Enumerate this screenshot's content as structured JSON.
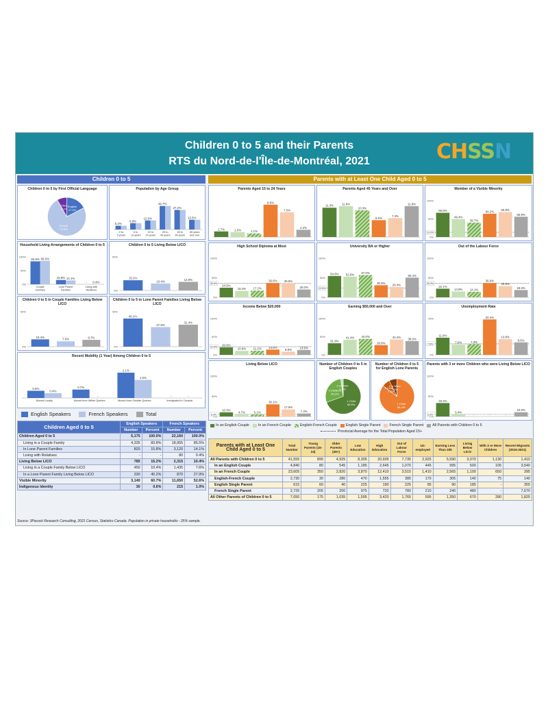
{
  "header": {
    "title_line1": "Children 0 to 5 and their Parents",
    "title_line2": "RTS du Nord-de-l'Île-de-Montréal, 2021",
    "logo": [
      "CH",
      "SS",
      "N"
    ]
  },
  "colors": {
    "header": "#1a8a9c",
    "left_band": "#4c72c3",
    "right_band": "#c99c13",
    "english": "#4472c4",
    "french": "#b4c6e7",
    "total": "#a5a5a5",
    "en_couple": "#548235",
    "fr_couple": "#c5e0b4",
    "ef_couple": "#70ad47",
    "en_single": "#ed7d31",
    "fr_single": "#f8cbad",
    "all": "#a5a5a5"
  },
  "bands": {
    "left": "Children 0 to 5",
    "right": "Parents with at Least One Child Aged 0 to 5"
  },
  "left_legend": [
    "English Speakers",
    "French Speakers",
    "Total"
  ],
  "right_legend": {
    "items": [
      "In an English Couple",
      "In an French Couple",
      "English-French Couple",
      "English Single Parent",
      "French Single Parent",
      "All Parents with Children 0 to 5"
    ],
    "provincial": "Provincial Average for the Total Population Aged 15+"
  },
  "chart_data": [
    {
      "id": "c1",
      "type": "pie",
      "title": "Children 0 to 5 by First Official Language",
      "labels": [
        "English",
        "French",
        "Other"
      ],
      "values": [
        17.4,
        74.5,
        8.1
      ],
      "value_labels": [
        "17.4%",
        "74.5%",
        "8.1%"
      ],
      "colors": [
        "#4472c4",
        "#b4c6e7",
        "#7030a0"
      ]
    },
    {
      "id": "c2",
      "type": "bar",
      "title": "Population by Age Group",
      "categories": [
        "0 to 5 years",
        "6 to 14 years",
        "15 to 24 years",
        "25 to 44 years",
        "45 to 64 years",
        "65 years and over"
      ],
      "series": [
        {
          "name": "English Speakers",
          "values": [
            5.2,
            8.8,
            12.6,
            32.7,
            27.2,
            13.5
          ]
        },
        {
          "name": "French Speakers",
          "values": [
            5.2,
            8.8,
            12.6,
            32.7,
            27.2,
            13.5
          ]
        }
      ],
      "labels": [
        "5.2%",
        "8.8%",
        "12.6%",
        "32.7%",
        "27.2%",
        "13.5%"
      ],
      "ylim": [
        0,
        40
      ]
    },
    {
      "id": "c3",
      "type": "bar",
      "title": "Household Living Arrangements of Children 0 to 5",
      "categories": [
        "Couple Families",
        "Lone Parent Families",
        "Living with Relatives"
      ],
      "series": [
        {
          "name": "English Speakers",
          "values": [
            83.8,
            15.8,
            0
          ]
        },
        {
          "name": "French Speakers",
          "values": [
            85.5,
            14.1,
            0.4
          ]
        }
      ],
      "labels": [
        [
          "83.8%",
          "85.5%"
        ],
        [
          "15.8%",
          "14.1%"
        ],
        [
          "-",
          "0.4%"
        ]
      ],
      "yticks": [
        "100%",
        "50%",
        "0%"
      ],
      "ylim": [
        0,
        100
      ]
    },
    {
      "id": "c4",
      "type": "bar",
      "title": "Children 0 to 5 Living Below LICO",
      "categories": [
        "English",
        "French",
        "Total"
      ],
      "values": [
        15.2,
        10.4,
        12.8
      ],
      "labels": [
        "15.2%",
        "10.4%",
        "12.8%"
      ],
      "yticks": [
        "50%",
        "0%"
      ],
      "ylim": [
        0,
        50
      ]
    },
    {
      "id": "c5",
      "type": "bar",
      "title": "Children 0 to 5 in Couple Families Living Below LICO",
      "categories": [
        "English",
        "French",
        "Total"
      ],
      "values": [
        10.4,
        7.6,
        9.7
      ],
      "labels": [
        "10.4%",
        "7.6%",
        "9.7%"
      ],
      "yticks": [
        "50%",
        "0%"
      ],
      "ylim": [
        0,
        50
      ]
    },
    {
      "id": "c6",
      "type": "bar",
      "title": "Children 0 to 5 in Lone Parent Families Living Below LICO",
      "categories": [
        "English",
        "French",
        "Total"
      ],
      "values": [
        40.2,
        27.9,
        31.4
      ],
      "labels": [
        "40.2%",
        "27.9%",
        "31.4%"
      ],
      "yticks": [
        "50%",
        "0%"
      ],
      "ylim": [
        0,
        50
      ]
    },
    {
      "id": "c7",
      "type": "bar",
      "title": "Recent Mobility (1 Year) Among Children 0 to 5",
      "categories": [
        "Moved Locally",
        "Moved from Within Quebec",
        "Moved from Outside Quebec",
        "Immigrated to Canada"
      ],
      "series": [
        {
          "name": "English Speakers",
          "values": [
            0.6,
            0.7,
            2.1,
            0
          ]
        },
        {
          "name": "French Speakers",
          "values": [
            0.4,
            0,
            1.5,
            0
          ]
        }
      ],
      "labels": [
        [
          "0.6%",
          "0.4%"
        ],
        [
          "0.7%",
          "-"
        ],
        [
          "2.1%",
          "1.5%"
        ],
        [
          "-",
          "-"
        ]
      ],
      "ylim": [
        0,
        2.5
      ]
    },
    {
      "id": "r1",
      "type": "bar",
      "title": "Parents Aged 15 to 24 Years",
      "values": [
        1.7,
        1.5,
        1.1,
        9.8,
        7.5,
        2.2
      ],
      "labels": [
        "1.7%",
        "1.5%",
        "1.1%",
        "9.8%",
        "7.5%",
        "2.2%"
      ],
      "ylim": [
        0,
        11
      ]
    },
    {
      "id": "r2",
      "type": "bar",
      "title": "Parents Aged 45 Years and Over",
      "values": [
        11.3,
        11.9,
        10.3,
        6.5,
        7.3,
        11.9
      ],
      "labels": [
        "11.3%",
        "11.9%",
        "10.3%",
        "6.5%",
        "7.3%",
        "11.9%"
      ],
      "ylim": [
        0,
        14
      ]
    },
    {
      "id": "r3",
      "type": "bar",
      "title": "Member of a Visible Minority",
      "values": [
        66.8,
        49.4,
        39.7,
        64.2,
        68.8,
        55.9
      ],
      "labels": [
        "66.8%",
        "49.4%",
        "39.7%",
        "64.2%",
        "68.8%",
        "55.9%"
      ],
      "ylim": [
        0,
        100
      ],
      "yticks": [
        "100%",
        "50%",
        "0%"
      ],
      "provincial": 13.0,
      "provincial_label": "13.0%"
    },
    {
      "id": "r4",
      "type": "bar",
      "title": "High School Diploma at Most",
      "values": [
        24.5,
        16.4,
        17.2,
        36.6,
        35.8,
        20.0
      ],
      "labels": [
        "24.5%",
        "16.4%",
        "17.2%",
        "36.6%",
        "35.8%",
        "20.0%"
      ],
      "ylim": [
        0,
        100
      ],
      "yticks": [
        "100%",
        "50%",
        "0%"
      ],
      "provincial": 35.6,
      "provincial_label": "35.6%"
    },
    {
      "id": "r5",
      "type": "bar",
      "title": "University BA or Higher",
      "values": [
        54.6,
        52.6,
        57.0,
        30.9,
        26.4,
        50.4
      ],
      "labels": [
        "54.6%",
        "52.6%",
        "57.0%",
        "30.9%",
        "26.4%",
        "50.4%"
      ],
      "ylim": [
        0,
        100
      ],
      "yticks": [
        "100%",
        "50%",
        "0%"
      ],
      "provincial": 23.5,
      "provincial_label": "23.5%"
    },
    {
      "id": "r6",
      "type": "bar",
      "title": "Out of the Labour Force",
      "values": [
        22.1,
        14.9,
        14.1,
        36.6,
        28.6,
        18.6
      ],
      "labels": [
        "22.1%",
        "14.9%",
        "14.1%",
        "36.6%",
        "28.6%",
        "18.6%"
      ],
      "ylim": [
        0,
        100
      ],
      "yticks": [
        "100%",
        "50%",
        "0%"
      ],
      "provincial": 35.9,
      "provincial_label": "35.9%"
    },
    {
      "id": "r7",
      "type": "bar",
      "title": "Income Below $20,000",
      "values": [
        20.6,
        10.9,
        11.2,
        14.6,
        8.8,
        13.5
      ],
      "labels": [
        "20.6%",
        "10.9%",
        "11.2%",
        "14.6%",
        "8.8%",
        "13.5%"
      ],
      "ylim": [
        0,
        100
      ],
      "yticks": [
        "100%",
        "50%",
        "0%"
      ],
      "provincial": 22.6,
      "provincial_label": "22.6%"
    },
    {
      "id": "r8",
      "type": "bar",
      "title": "Earning $50,000 and Over",
      "values": [
        31.9,
        41.4,
        44.0,
        26.8,
        42.4,
        38.0
      ],
      "labels": [
        "31.9%",
        "41.4%",
        "44.0%",
        "26.8%",
        "42.4%",
        "38.0%"
      ],
      "ylim": [
        0,
        100
      ],
      "yticks": [
        "100%",
        "50%",
        "0%"
      ]
    },
    {
      "id": "r9",
      "type": "bar",
      "title": "Unemployment Rate",
      "values": [
        11.8,
        7.0,
        7.3,
        24.4,
        10.8,
        8.6
      ],
      "labels": [
        "11.8%",
        "7.0%",
        "7.3%",
        "24.4%",
        "10.8%",
        "8.6%"
      ],
      "ylim": [
        0,
        25
      ],
      "yticks": [
        "25%",
        "0%"
      ],
      "provincial": 7.6,
      "provincial_label": "7.6%"
    },
    {
      "id": "r10",
      "type": "bar",
      "title": "Living Below LICO",
      "values": [
        10.3,
        4.7,
        5.1,
        30.1,
        17.6,
        7.4
      ],
      "labels": [
        "10.3%",
        "4.7%",
        "5.1%",
        "30.1%",
        "17.6%",
        "7.4%"
      ],
      "ylim": [
        0,
        100
      ],
      "yticks": [
        "100%",
        "50%",
        "0%"
      ],
      "provincial": 5.3,
      "provincial_label": "5.3%"
    },
    {
      "id": "r11",
      "type": "pie",
      "title": "Number of Children 0 to 5 in English Couples",
      "labels": [
        "1 Child",
        "2 Children",
        "3 or More"
      ],
      "values": [
        69.5,
        28.2,
        2.3
      ],
      "value_labels": [
        "69.5%",
        "28.2%",
        "2.3%"
      ],
      "colors": [
        "#548235",
        "#70ad47",
        "#c5e0b4"
      ]
    },
    {
      "id": "r12",
      "type": "pie",
      "title": "Number of Children 0 to 5 for English Lone Parents",
      "labels": [
        "1 Child",
        "2 Children",
        "3 or More"
      ],
      "values": [
        85.4,
        7.3,
        7.3
      ],
      "value_labels": [
        "85.4%",
        "7.3%",
        "7.3%"
      ],
      "colors": [
        "#ed7d31",
        "#c55a11",
        "#843c0c"
      ]
    },
    {
      "id": "r13",
      "type": "bar",
      "title": "Parents with 3 or more Children who were Living Below LICO",
      "values": [
        33.3,
        5.4,
        0,
        0,
        0,
        10.6
      ],
      "labels": [
        "33.3%",
        "5.4%",
        "-",
        "-",
        "-",
        "10.6%"
      ],
      "ylim": [
        0,
        100
      ],
      "yticks": [
        "100%",
        "50%",
        "0%"
      ],
      "provincial": 5.3,
      "provincial_label": "5.3%"
    }
  ],
  "left_table": {
    "title": "Children Aged 0 to 5",
    "groups": [
      "English Speakers",
      "French Speakers"
    ],
    "cols": [
      "Number",
      "Percent",
      "Number",
      "Percent"
    ],
    "rows": [
      {
        "label": "Children Aged 0 to 5",
        "vals": [
          "5,175",
          "100.0%",
          "22,160",
          "100.0%"
        ],
        "bold": true
      },
      {
        "label": "Living in a Couple Family",
        "vals": [
          "4,335",
          "83.8%",
          "18,955",
          "85.5%"
        ]
      },
      {
        "label": "In Lone Parent Families",
        "vals": [
          "820",
          "15.8%",
          "3,120",
          "14.1%"
        ]
      },
      {
        "label": "Living with Relatives",
        "vals": [
          "-",
          "-",
          "80",
          "0.4%"
        ]
      },
      {
        "label": "Living Below LICO",
        "vals": [
          "785",
          "15.2%",
          "2,315",
          "10.4%"
        ],
        "bold": true
      },
      {
        "label": "Living in a Couple Family Below LICO",
        "vals": [
          "450",
          "10.4%",
          "1,435",
          "7.6%"
        ]
      },
      {
        "label": "In a Lone Parent Family Living Below LICO",
        "vals": [
          "330",
          "40.2%",
          "870",
          "27.9%"
        ]
      },
      {
        "label": "Visible Minority",
        "vals": [
          "3,140",
          "60.7%",
          "11,650",
          "52.6%"
        ],
        "bold": true
      },
      {
        "label": "Indigenous Identity",
        "vals": [
          "30",
          "0.6%",
          "215",
          "1.0%"
        ],
        "bold": true
      }
    ]
  },
  "right_table": {
    "title": "Parents with at Least One Child Aged 0 to 5",
    "cols": [
      "Total Number",
      "Young Parents (15-24)",
      "Older Parents (45+)",
      "Low Education",
      "High Education",
      "Out of Labour Force",
      "Un-employed",
      "Earning Less Than 20k",
      "Living Below LICO",
      "With 3 or More Children",
      "Recent Migrants (2016-2021)"
    ],
    "rows": [
      {
        "label": "All Parents with Children 0 to 5",
        "vals": [
          "41,555",
          "895",
          "4,925",
          "8,305",
          "20,935",
          "7,735",
          "2,925",
          "5,590",
          "3,070",
          "1,130",
          "1,410"
        ]
      },
      {
        "label": "In an English Couple",
        "vals": [
          "4,840",
          "80",
          "545",
          "1,185",
          "2,645",
          "1,070",
          "445",
          "995",
          "500",
          "105",
          "3,540"
        ]
      },
      {
        "label": "In an French Couple",
        "vals": [
          "23,605",
          "350",
          "2,820",
          "3,870",
          "12,410",
          "3,515",
          "1,410",
          "2,565",
          "1,100",
          "650",
          "395"
        ]
      },
      {
        "label": "English-French Couple",
        "vals": [
          "2,730",
          "30",
          "280",
          "470",
          "1,555",
          "385",
          "170",
          "305",
          "140",
          "75",
          "140"
        ]
      },
      {
        "label": "English Single Parent",
        "vals": [
          "615",
          "60",
          "40",
          "225",
          "190",
          "225",
          "95",
          "90",
          "185",
          "-",
          "355"
        ]
      },
      {
        "label": "French Single Parent",
        "vals": [
          "2,725",
          "205",
          "200",
          "975",
          "720",
          "780",
          "210",
          "240",
          "480",
          "-",
          "7,670"
        ]
      },
      {
        "label": "All Other Parents of Children 0 to 5",
        "vals": [
          "7,050",
          "175",
          "1,035",
          "1,595",
          "3,420",
          "1,765",
          "595",
          "1,350",
          "670",
          "280",
          "1,825"
        ]
      }
    ]
  },
  "source": "Source: 3Pacock Research Consulting, 2021 Census, Statistics Canada. Population in private households - 25% sample."
}
